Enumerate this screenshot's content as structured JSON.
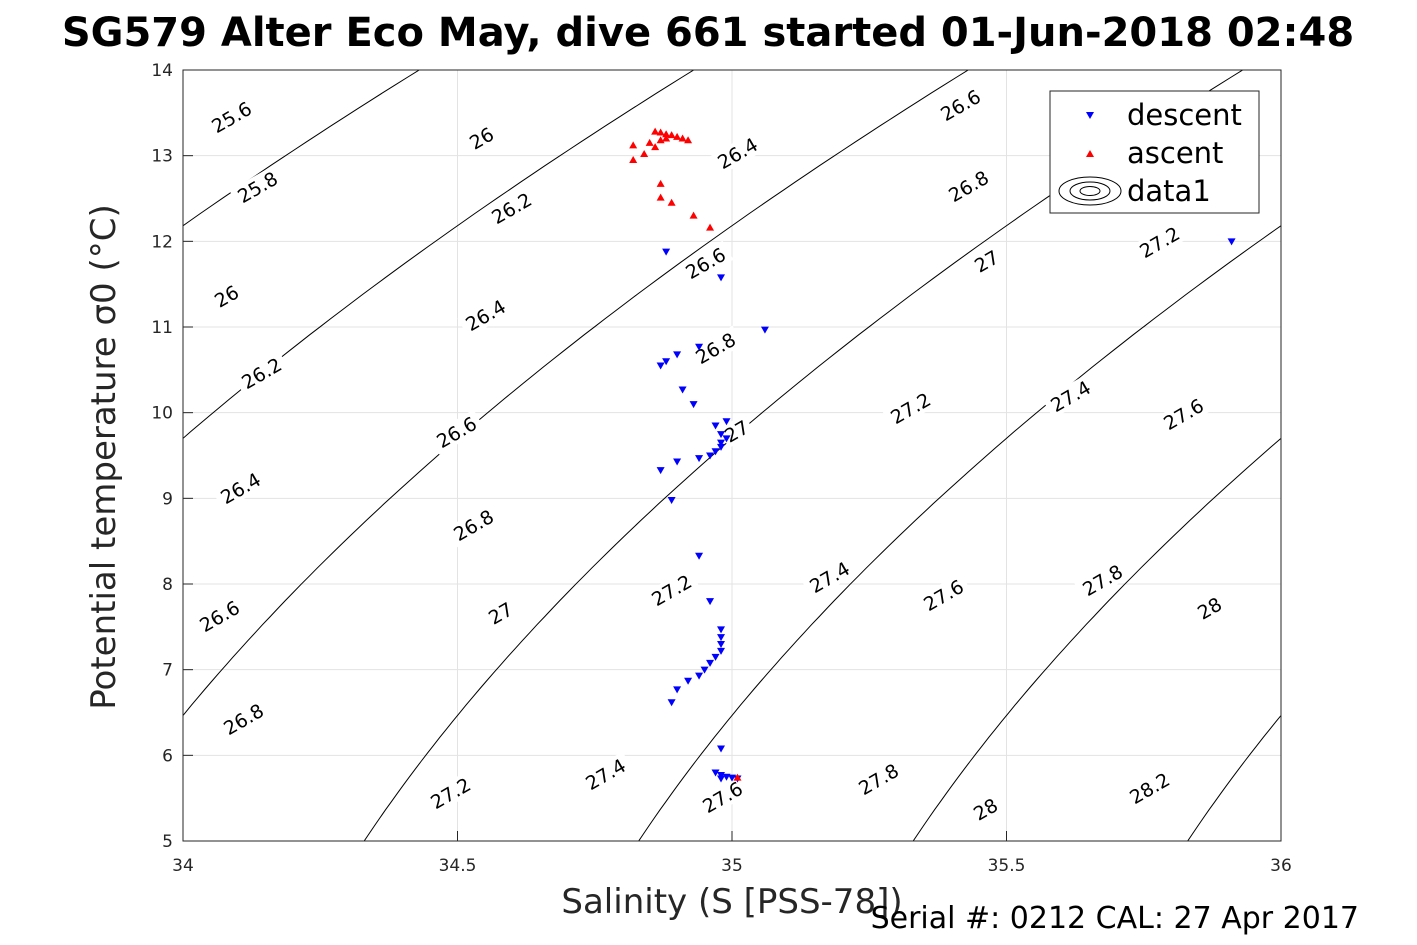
{
  "chart_data": {
    "type": "scatter",
    "title": "SG579 Alter Eco May, dive 661 started 01-Jun-2018 02:48",
    "xlabel": "Salinity (S [PSS-78])",
    "ylabel": "Potential temperature σ0 (°C)",
    "footer": "Serial #: 0212  CAL: 27 Apr 2017",
    "xlim": [
      34,
      36
    ],
    "ylim": [
      5,
      14
    ],
    "xticks": [
      "34",
      "34.5",
      "35",
      "35.5",
      "36"
    ],
    "yticks": [
      "5",
      "6",
      "7",
      "8",
      "9",
      "10",
      "11",
      "12",
      "13",
      "14"
    ],
    "grid": true,
    "legend_position": "top-right",
    "legend": [
      {
        "label": "descent",
        "marker": "triangle-down",
        "color": "#0000ff"
      },
      {
        "label": "ascent",
        "marker": "triangle-up",
        "color": "#ff0000"
      },
      {
        "label": "data1",
        "marker": "contour"
      }
    ],
    "series": [
      {
        "name": "descent",
        "color": "#0000ff",
        "marker": "triangle-down",
        "points": [
          [
            35.91,
            12.0
          ],
          [
            34.88,
            11.88
          ],
          [
            34.98,
            11.58
          ],
          [
            35.06,
            10.97
          ],
          [
            34.94,
            10.77
          ],
          [
            34.87,
            10.55
          ],
          [
            34.88,
            10.6
          ],
          [
            34.9,
            10.68
          ],
          [
            34.91,
            10.27
          ],
          [
            34.93,
            10.1
          ],
          [
            34.97,
            9.85
          ],
          [
            34.99,
            9.9
          ],
          [
            34.98,
            9.75
          ],
          [
            34.99,
            9.7
          ],
          [
            34.98,
            9.65
          ],
          [
            34.98,
            9.6
          ],
          [
            34.97,
            9.55
          ],
          [
            34.96,
            9.5
          ],
          [
            34.94,
            9.47
          ],
          [
            34.9,
            9.43
          ],
          [
            34.87,
            9.33
          ],
          [
            34.89,
            8.98
          ],
          [
            34.94,
            8.33
          ],
          [
            34.96,
            7.8
          ],
          [
            34.98,
            7.47
          ],
          [
            34.98,
            7.38
          ],
          [
            34.98,
            7.3
          ],
          [
            34.98,
            7.22
          ],
          [
            34.97,
            7.15
          ],
          [
            34.96,
            7.08
          ],
          [
            34.95,
            7.0
          ],
          [
            34.94,
            6.93
          ],
          [
            34.92,
            6.87
          ],
          [
            34.9,
            6.77
          ],
          [
            34.89,
            6.62
          ],
          [
            34.98,
            6.08
          ],
          [
            34.97,
            5.8
          ],
          [
            34.98,
            5.77
          ],
          [
            34.99,
            5.75
          ],
          [
            35.0,
            5.74
          ],
          [
            35.01,
            5.73
          ],
          [
            34.98,
            5.73
          ]
        ]
      },
      {
        "name": "ascent",
        "color": "#ff0000",
        "marker": "triangle-up",
        "points": [
          [
            34.82,
            13.12
          ],
          [
            34.82,
            12.95
          ],
          [
            34.84,
            13.02
          ],
          [
            34.85,
            13.15
          ],
          [
            34.86,
            13.28
          ],
          [
            34.87,
            13.27
          ],
          [
            34.88,
            13.25
          ],
          [
            34.89,
            13.24
          ],
          [
            34.9,
            13.22
          ],
          [
            34.91,
            13.2
          ],
          [
            34.92,
            13.18
          ],
          [
            34.87,
            13.18
          ],
          [
            34.88,
            13.2
          ],
          [
            34.86,
            13.1
          ],
          [
            34.87,
            12.67
          ],
          [
            34.87,
            12.51
          ],
          [
            34.89,
            12.45
          ],
          [
            34.93,
            12.3
          ],
          [
            34.96,
            12.16
          ],
          [
            35.01,
            5.74
          ]
        ]
      }
    ],
    "contour_labels": [
      "25.6",
      "25.8",
      "26",
      "26",
      "26.2",
      "26.2",
      "26.4",
      "26.4",
      "26.4",
      "26.6",
      "26.6",
      "26.6",
      "26.6",
      "26.8",
      "26.8",
      "26.8",
      "26.8",
      "27",
      "27",
      "27",
      "27.2",
      "27.2",
      "27.2",
      "27.2",
      "27.4",
      "27.4",
      "27.4",
      "27.6",
      "27.6",
      "27.6",
      "27.8",
      "27.8",
      "28",
      "28",
      "28.2"
    ]
  }
}
